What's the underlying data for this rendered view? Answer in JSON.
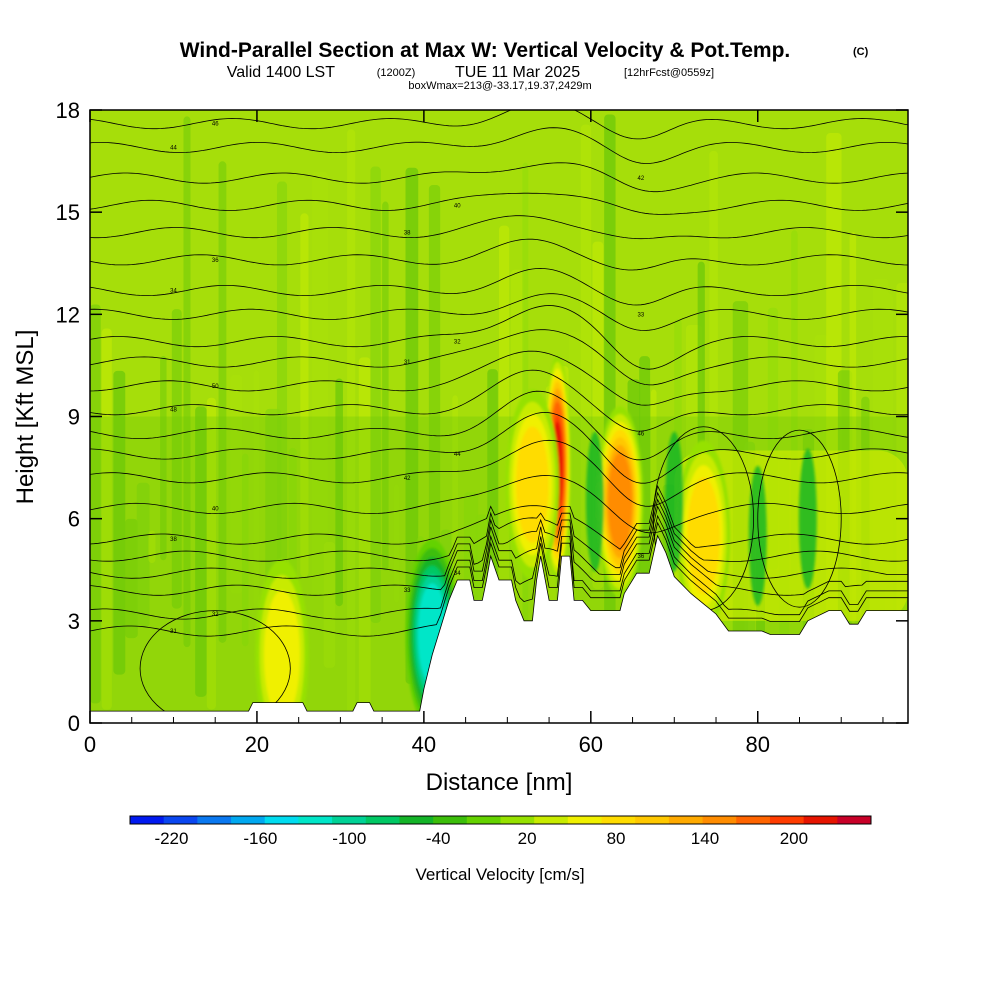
{
  "header": {
    "title": "Wind-Parallel Section at Max W: Vertical Velocity & Pot.Temp.",
    "copyright": "(C)",
    "valid_prefix": "Valid 1400 LST",
    "valid_zulu": "(1200Z)",
    "valid_date": "TUE 11 Mar 2025",
    "forecast": "[12hrFcst@0559z]",
    "boxwmax": "boxWmax=213@-33.17,19.37,2429m"
  },
  "chart_data": {
    "type": "heatmap",
    "xlabel": "Distance [nm]",
    "ylabel": "Height [Kft MSL]",
    "xlim": [
      0,
      98
    ],
    "ylim": [
      0,
      18
    ],
    "xticks": [
      0,
      20,
      40,
      60,
      80
    ],
    "yticks": [
      0,
      3,
      6,
      9,
      12,
      15,
      18
    ],
    "colorbar": {
      "label": "Vertical Velocity [cm/s]",
      "ticks": [
        -220,
        -160,
        -100,
        -40,
        20,
        80,
        140,
        200
      ],
      "min": -250,
      "max": 250,
      "colors": [
        "#0019f0",
        "#0a46f0",
        "#0a78f0",
        "#00a8f0",
        "#00dcf0",
        "#00e6c8",
        "#00d296",
        "#00c864",
        "#14b428",
        "#3cbe0a",
        "#64d200",
        "#96e100",
        "#c8eb00",
        "#f0f000",
        "#ffdc00",
        "#ffc800",
        "#ffaa00",
        "#ff8c00",
        "#ff6400",
        "#ff3c00",
        "#e61400",
        "#c80028"
      ]
    },
    "terrain_kft": [
      [
        0,
        0.35
      ],
      [
        19,
        0.35
      ],
      [
        19.5,
        0.6
      ],
      [
        25.5,
        0.6
      ],
      [
        26,
        0.35
      ],
      [
        31.5,
        0.35
      ],
      [
        32,
        0.6
      ],
      [
        33.5,
        0.6
      ],
      [
        34,
        0.35
      ],
      [
        39.5,
        0.35
      ],
      [
        40,
        1.0
      ],
      [
        41,
        2.0
      ],
      [
        42,
        2.8
      ],
      [
        43,
        3.6
      ],
      [
        44,
        4.2
      ],
      [
        45.5,
        4.2
      ],
      [
        46,
        3.6
      ],
      [
        47,
        3.6
      ],
      [
        47.5,
        4.2
      ],
      [
        48,
        4.9
      ],
      [
        49,
        4.2
      ],
      [
        50.5,
        4.2
      ],
      [
        51,
        3.6
      ],
      [
        52,
        3.0
      ],
      [
        53,
        3.0
      ],
      [
        53.5,
        4.2
      ],
      [
        54,
        4.9
      ],
      [
        55,
        3.6
      ],
      [
        56,
        3.6
      ],
      [
        56.5,
        4.9
      ],
      [
        57.5,
        4.9
      ],
      [
        58,
        3.6
      ],
      [
        59,
        3.6
      ],
      [
        60,
        3.3
      ],
      [
        63.5,
        3.3
      ],
      [
        64,
        3.8
      ],
      [
        65.5,
        4.4
      ],
      [
        67,
        4.4
      ],
      [
        68,
        5.5
      ],
      [
        69,
        5.0
      ],
      [
        70,
        4.3
      ],
      [
        72,
        3.8
      ],
      [
        73.5,
        3.5
      ],
      [
        75,
        3.2
      ],
      [
        76.5,
        2.7
      ],
      [
        80.5,
        2.7
      ],
      [
        81.5,
        2.6
      ],
      [
        85,
        2.6
      ],
      [
        86,
        3.0
      ],
      [
        88.5,
        3.3
      ],
      [
        90,
        3.3
      ],
      [
        91,
        2.9
      ],
      [
        92,
        2.9
      ],
      [
        93,
        3.3
      ],
      [
        98,
        3.3
      ]
    ],
    "updraft_cores": [
      {
        "x": 56,
        "z": 7.5,
        "w": 213
      },
      {
        "x": 63.5,
        "z": 6.5,
        "w": 150
      },
      {
        "x": 73.5,
        "z": 5.5,
        "w": 90
      },
      {
        "x": 53,
        "z": 7.0,
        "w": 80
      },
      {
        "x": 23,
        "z": 2.0,
        "w": 60
      },
      {
        "x": 41,
        "z": 2.6,
        "w": -120
      }
    ],
    "theta_isentropes_kft": [
      2.7,
      3.2,
      3.9,
      4.4,
      4.9,
      5.4,
      6.3,
      7.2,
      7.9,
      8.5,
      9.2,
      9.9,
      10.6,
      11.2,
      12.0,
      12.7,
      13.6,
      14.4,
      15.2,
      16.0,
      16.9,
      17.6
    ],
    "isentrope_labels": [
      "31",
      "32",
      "33",
      "34",
      "36",
      "38",
      "40",
      "42",
      "44",
      "46",
      "48",
      "50"
    ]
  }
}
